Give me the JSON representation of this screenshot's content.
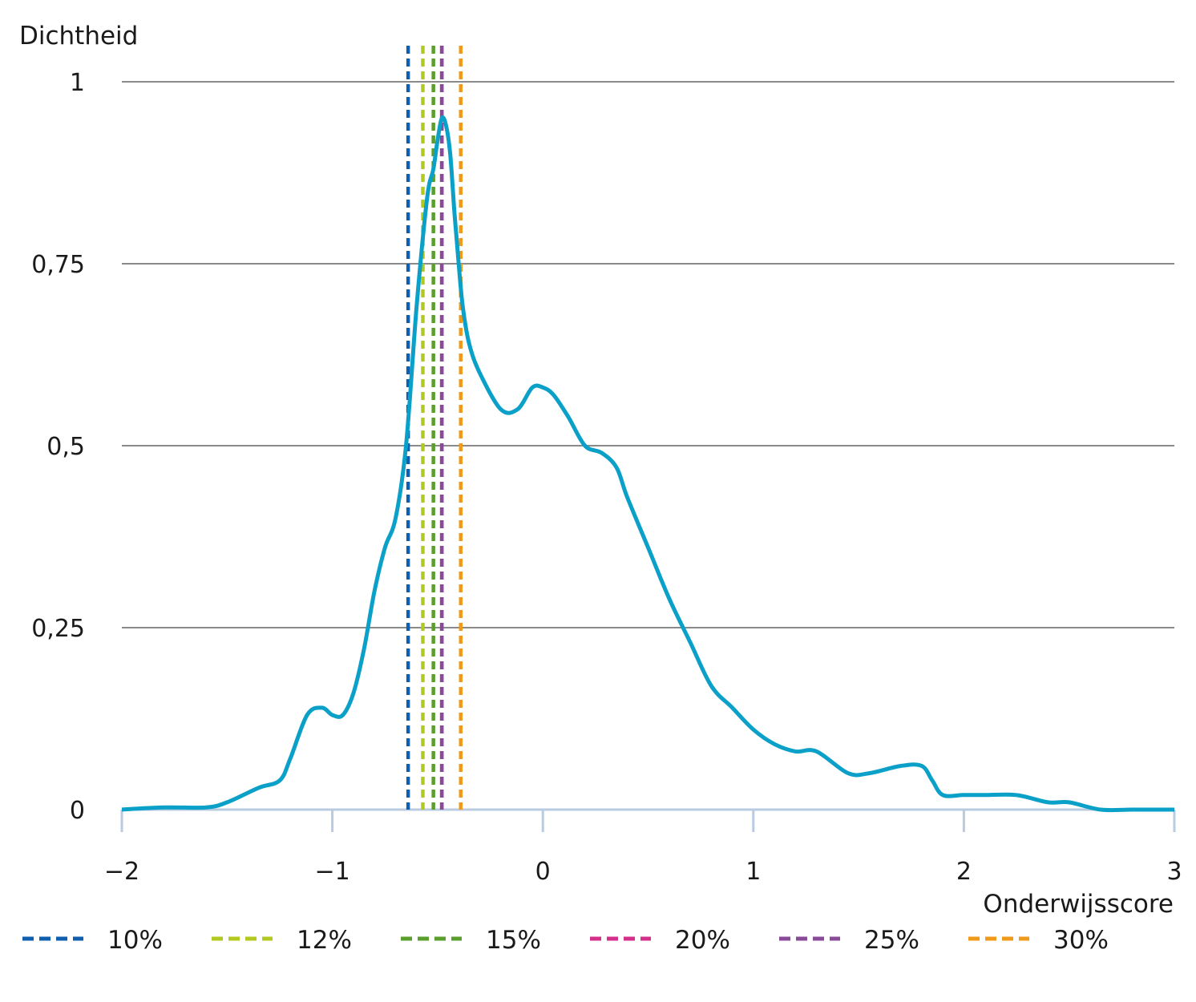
{
  "chart_data": {
    "type": "line",
    "ylabel": "Dichtheid",
    "xlabel": "Onderwijsscore",
    "xlim": [
      -2,
      3
    ],
    "ylim": [
      0,
      1
    ],
    "x_ticks": [
      -2,
      -1,
      0,
      1,
      2,
      3
    ],
    "x_tick_labels": [
      "−2",
      "−1",
      "0",
      "1",
      "2",
      "3"
    ],
    "y_ticks": [
      0,
      0.25,
      0.5,
      0.75,
      1
    ],
    "y_tick_labels": [
      "0",
      "0,25",
      "0,5",
      "0,75",
      "1"
    ],
    "grid": "horizontal",
    "legend_position": "bottom",
    "curve_color": "#0aa0c8",
    "density": {
      "x": [
        -2.0,
        -1.8,
        -1.6,
        -1.5,
        -1.35,
        -1.25,
        -1.2,
        -1.12,
        -1.05,
        -1.0,
        -0.95,
        -0.9,
        -0.85,
        -0.8,
        -0.75,
        -0.7,
        -0.65,
        -0.6,
        -0.55,
        -0.52,
        -0.5,
        -0.48,
        -0.46,
        -0.44,
        -0.42,
        -0.4,
        -0.38,
        -0.35,
        -0.3,
        -0.2,
        -0.12,
        -0.05,
        0.0,
        0.05,
        0.12,
        0.2,
        0.28,
        0.35,
        0.4,
        0.5,
        0.6,
        0.7,
        0.8,
        0.9,
        1.0,
        1.1,
        1.2,
        1.3,
        1.45,
        1.55,
        1.7,
        1.8,
        1.85,
        1.9,
        2.0,
        2.1,
        2.25,
        2.4,
        2.5,
        2.65,
        2.8,
        3.0
      ],
      "y": [
        0.0,
        0.003,
        0.003,
        0.01,
        0.03,
        0.04,
        0.07,
        0.13,
        0.14,
        0.13,
        0.13,
        0.16,
        0.22,
        0.3,
        0.36,
        0.4,
        0.5,
        0.69,
        0.84,
        0.88,
        0.92,
        0.95,
        0.94,
        0.9,
        0.82,
        0.75,
        0.69,
        0.64,
        0.6,
        0.55,
        0.55,
        0.58,
        0.58,
        0.57,
        0.54,
        0.5,
        0.49,
        0.47,
        0.43,
        0.36,
        0.29,
        0.23,
        0.17,
        0.14,
        0.11,
        0.09,
        0.08,
        0.08,
        0.05,
        0.05,
        0.06,
        0.06,
        0.04,
        0.02,
        0.02,
        0.02,
        0.02,
        0.01,
        0.01,
        0.0,
        0.0,
        0.0
      ]
    },
    "series": [
      {
        "name": "10%",
        "x": -0.64,
        "color": "#0f5fae"
      },
      {
        "name": "12%",
        "x": -0.57,
        "color": "#b3c91f"
      },
      {
        "name": "15%",
        "x": -0.52,
        "color": "#5a9e2e"
      },
      {
        "name": "20%",
        "x": -0.48,
        "color": "#d42f8a"
      },
      {
        "name": "25%",
        "x": -0.48,
        "color": "#8a4a9a"
      },
      {
        "name": "30%",
        "x": -0.39,
        "color": "#ef9a1a"
      }
    ]
  }
}
